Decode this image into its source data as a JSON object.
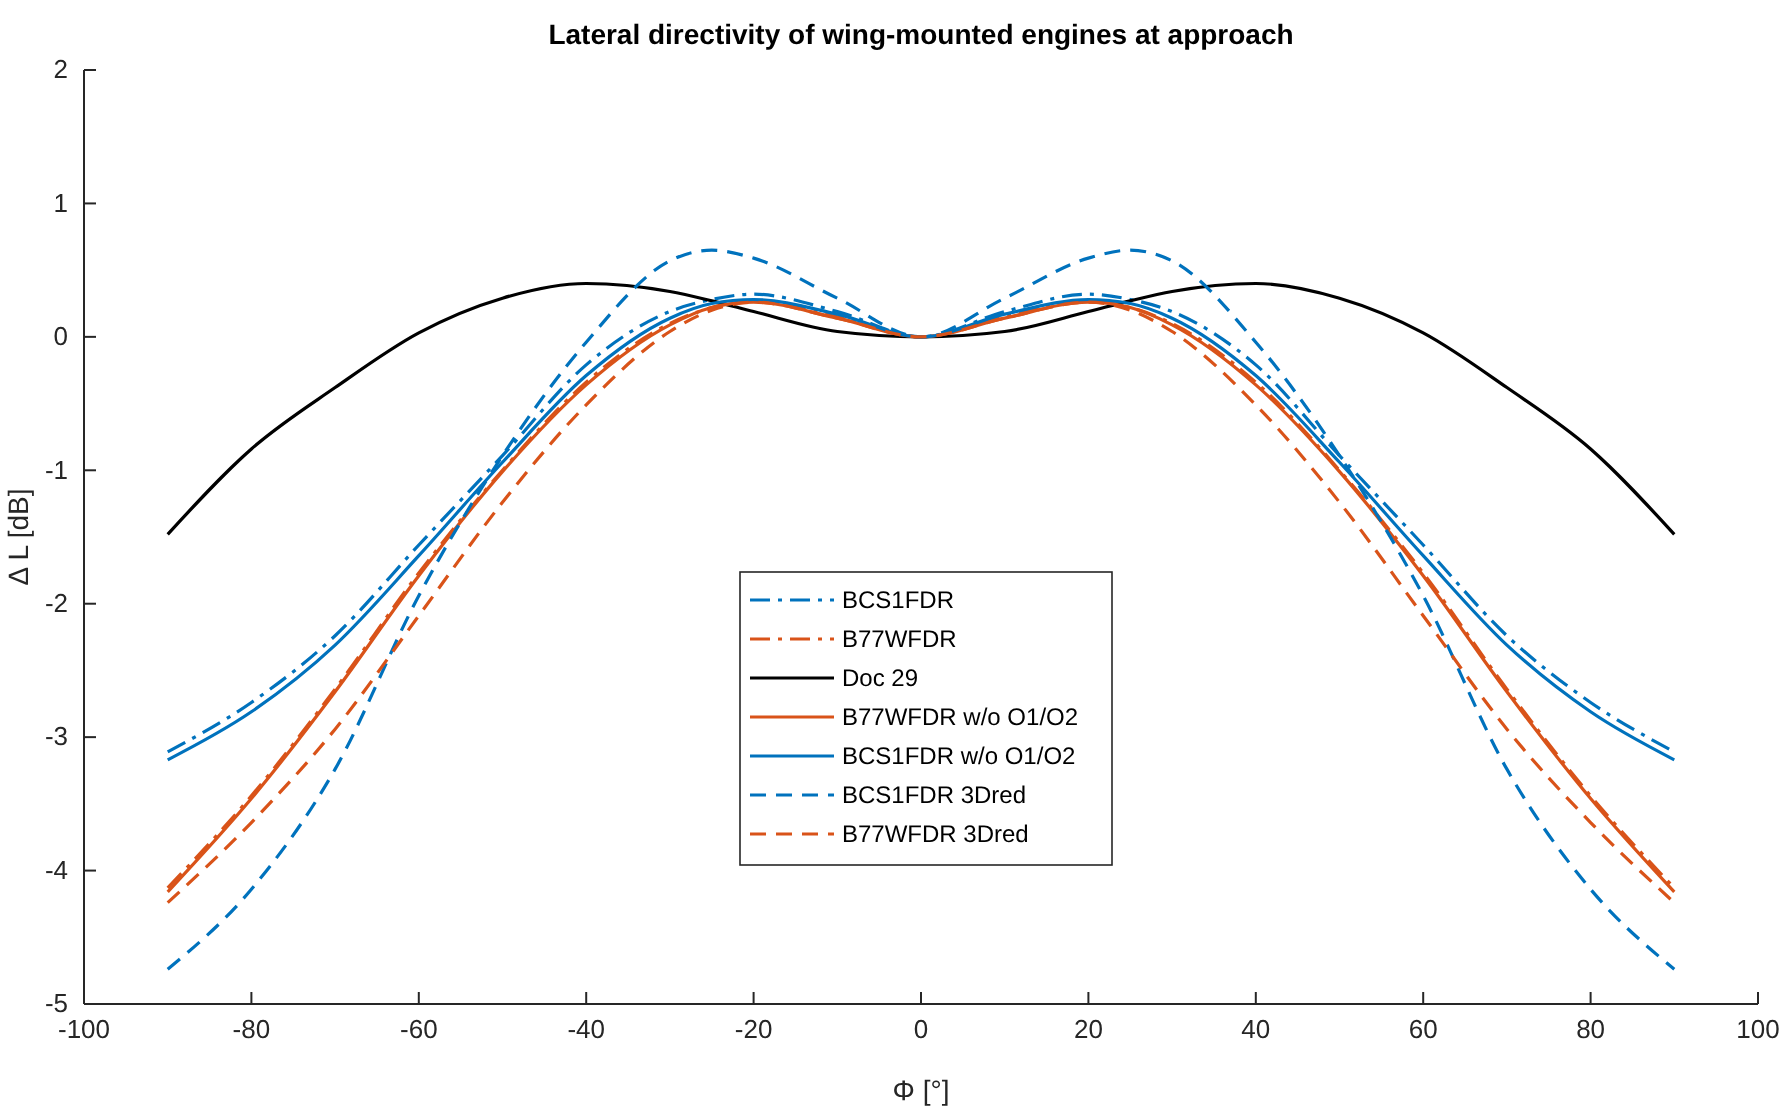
{
  "chart_data": {
    "type": "line",
    "title": "Lateral directivity of wing-mounted engines at approach",
    "xlabel": "Φ [°]",
    "ylabel": "Δ L [dB]",
    "x": [
      -90,
      -80,
      -70,
      -60,
      -50,
      -40,
      -30,
      -25,
      -20,
      -10,
      0,
      10,
      20,
      25,
      30,
      40,
      50,
      60,
      70,
      80,
      90
    ],
    "xlim": [
      -100,
      100
    ],
    "xticks": [
      -100,
      -80,
      -60,
      -40,
      -20,
      0,
      20,
      40,
      60,
      80,
      100
    ],
    "ylim": [
      -5,
      2
    ],
    "yticks": [
      -5,
      -4,
      -3,
      -2,
      -1,
      0,
      1,
      2
    ],
    "grid": false,
    "legend": "bottom",
    "marker": "none",
    "series": [
      {
        "name": "BCS1FDR",
        "color": "#0072bd",
        "line_style": "dashdot",
        "values": [
          -3.11,
          -2.74,
          -2.24,
          -1.56,
          -0.89,
          -0.21,
          0.19,
          0.28,
          0.32,
          0.19,
          0,
          0.19,
          0.32,
          0.28,
          0.19,
          -0.21,
          -0.89,
          -1.56,
          -2.24,
          -2.74,
          -3.11
        ]
      },
      {
        "name": "B77WFDR",
        "color": "#d95319",
        "line_style": "dashdot",
        "values": [
          -4.13,
          -3.44,
          -2.64,
          -1.77,
          -1.0,
          -0.34,
          0.1,
          0.22,
          0.27,
          0.15,
          0,
          0.15,
          0.27,
          0.22,
          0.1,
          -0.34,
          -1.0,
          -1.77,
          -2.64,
          -3.44,
          -4.13
        ]
      },
      {
        "name": "Doc 29",
        "color": "#000000",
        "line_style": "solid",
        "values": [
          -1.48,
          -0.84,
          -0.38,
          0.03,
          0.29,
          0.4,
          0.34,
          0.27,
          0.19,
          0.04,
          0,
          0.04,
          0.19,
          0.27,
          0.34,
          0.4,
          0.29,
          0.03,
          -0.38,
          -0.84,
          -1.48
        ]
      },
      {
        "name": "B77WFDR w/o O1/O2",
        "color": "#d95319",
        "line_style": "solid",
        "values": [
          -4.16,
          -3.46,
          -2.66,
          -1.79,
          -1.01,
          -0.36,
          0.09,
          0.22,
          0.26,
          0.14,
          0,
          0.14,
          0.26,
          0.22,
          0.09,
          -0.36,
          -1.01,
          -1.79,
          -2.66,
          -3.46,
          -4.16
        ]
      },
      {
        "name": "BCS1FDR w/o O1/O2",
        "color": "#0072bd",
        "line_style": "solid",
        "values": [
          -3.17,
          -2.81,
          -2.31,
          -1.64,
          -0.94,
          -0.29,
          0.14,
          0.25,
          0.28,
          0.17,
          0,
          0.17,
          0.28,
          0.25,
          0.14,
          -0.29,
          -0.94,
          -1.64,
          -2.31,
          -2.81,
          -3.17
        ]
      },
      {
        "name": "BCS1FDR 3Dred",
        "color": "#0072bd",
        "line_style": "dashed",
        "values": [
          -4.74,
          -4.14,
          -3.24,
          -1.94,
          -0.89,
          -0.04,
          0.57,
          0.65,
          0.59,
          0.29,
          0,
          0.29,
          0.59,
          0.65,
          0.57,
          -0.04,
          -0.89,
          -1.94,
          -3.24,
          -4.14,
          -4.74
        ]
      },
      {
        "name": "B77WFDR 3Dred",
        "color": "#d95319",
        "line_style": "dashed",
        "values": [
          -4.24,
          -3.64,
          -2.94,
          -2.09,
          -1.24,
          -0.51,
          0.04,
          0.2,
          0.26,
          0.14,
          0,
          0.14,
          0.26,
          0.2,
          0.04,
          -0.51,
          -1.24,
          -2.09,
          -2.94,
          -3.64,
          -4.24
        ]
      }
    ]
  }
}
